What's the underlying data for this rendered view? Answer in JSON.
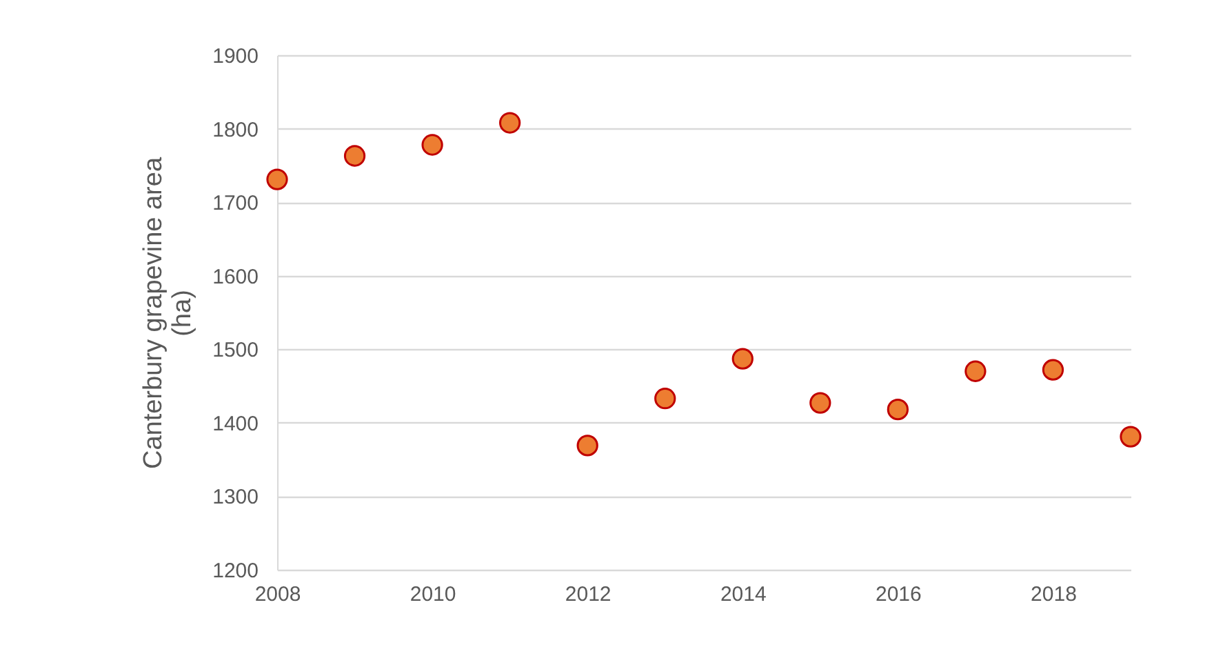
{
  "chart_data": {
    "type": "scatter",
    "ylabel": "Canterbury grapevine area\n(ha)",
    "x": [
      2008,
      2009,
      2010,
      2011,
      2012,
      2013,
      2014,
      2015,
      2016,
      2017,
      2018,
      2019
    ],
    "series": [
      {
        "color": "#ed7d31",
        "values": [
          1731,
          1763,
          1778,
          1808,
          1369,
          1433,
          1487,
          1427,
          1418,
          1470,
          1472,
          1381
        ]
      }
    ],
    "xlim": [
      2008,
      2019
    ],
    "xticks": [
      2008,
      2010,
      2012,
      2014,
      2016,
      2018
    ],
    "ylim": [
      1200,
      1900
    ],
    "yticks": [
      1200,
      1300,
      1400,
      1500,
      1600,
      1700,
      1800,
      1900
    ],
    "grid": "y",
    "marker": "circle",
    "legend": false
  }
}
